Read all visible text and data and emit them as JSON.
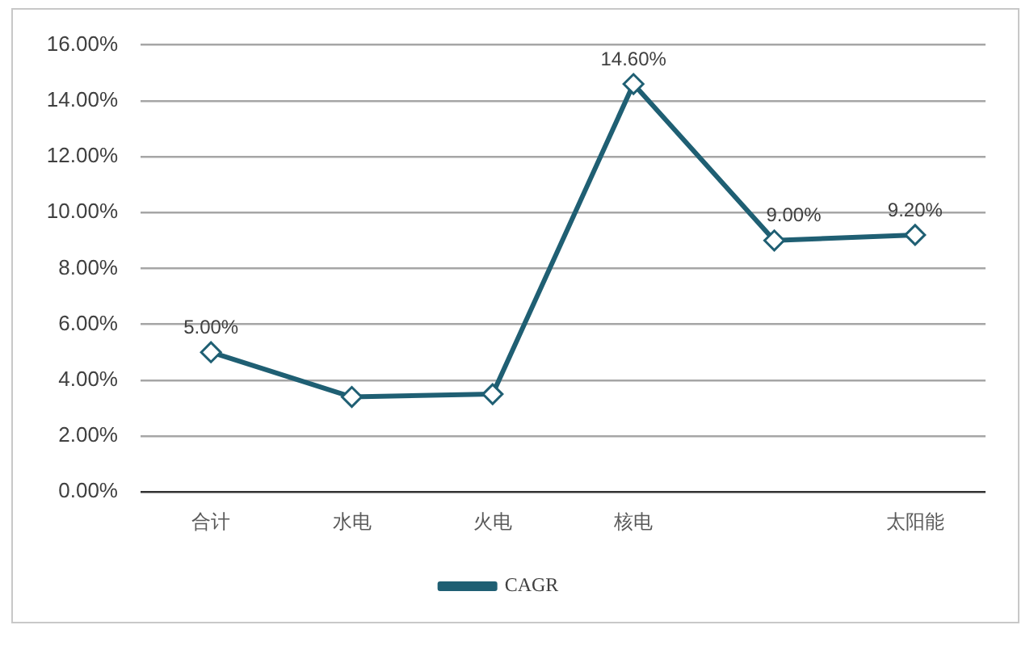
{
  "chart_data": {
    "type": "line",
    "categories": [
      "合计",
      "水电",
      "火电",
      "核电",
      null,
      "太阳能"
    ],
    "series": [
      {
        "name": "CAGR",
        "color": "#1f5f73",
        "values": [
          5.0,
          3.4,
          3.5,
          14.6,
          9.0,
          9.2
        ],
        "value_labels": [
          "5.00%",
          null,
          null,
          "14.60%",
          "9.00%",
          "9.20%"
        ]
      }
    ],
    "ylim": [
      0,
      16
    ],
    "yticks": [
      {
        "value": 0,
        "label": "0.00%"
      },
      {
        "value": 2,
        "label": "2.00%"
      },
      {
        "value": 4,
        "label": "4.00%"
      },
      {
        "value": 6,
        "label": "6.00%"
      },
      {
        "value": 8,
        "label": "8.00%"
      },
      {
        "value": 10,
        "label": "10.00%"
      },
      {
        "value": 12,
        "label": "12.00%"
      },
      {
        "value": 14,
        "label": "14.00%"
      },
      {
        "value": 16,
        "label": "16.00%"
      }
    ],
    "grid": "y",
    "legend": "bottom",
    "marker": "diamond",
    "line_style": "solid"
  }
}
